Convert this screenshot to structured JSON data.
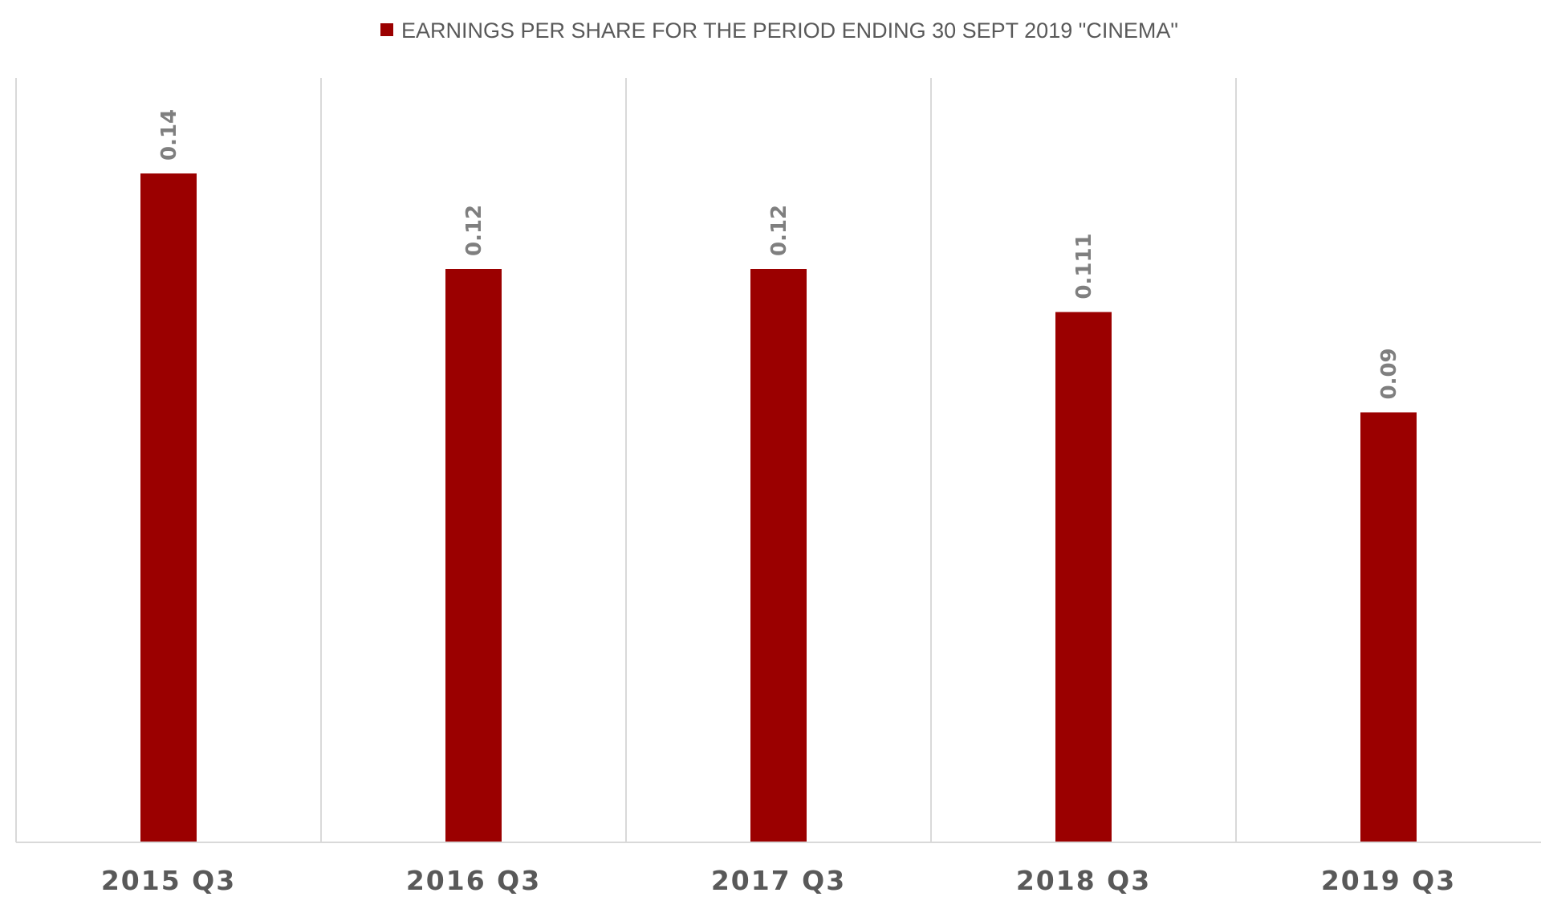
{
  "chart_data": {
    "type": "bar",
    "categories": [
      "2015 Q3",
      "2016 Q3",
      "2017 Q3",
      "2018 Q3",
      "2019 Q3"
    ],
    "series": [
      {
        "name": "EARNINGS PER SHARE FOR THE PERIOD ENDING 30 SEPT 2019 \"CINEMA\"",
        "values": [
          0.14,
          0.12,
          0.12,
          0.111,
          0.09
        ],
        "labels": [
          "0.14",
          "0.12",
          "0.12",
          "0.111",
          "0.09"
        ],
        "color": "#9b0000"
      }
    ],
    "legend_position": "top",
    "ylim": [
      0,
      0.16
    ],
    "grid": "vertical category separators",
    "gridline_color": "#d9d9d9",
    "axis_color": "#d9d9d9"
  }
}
